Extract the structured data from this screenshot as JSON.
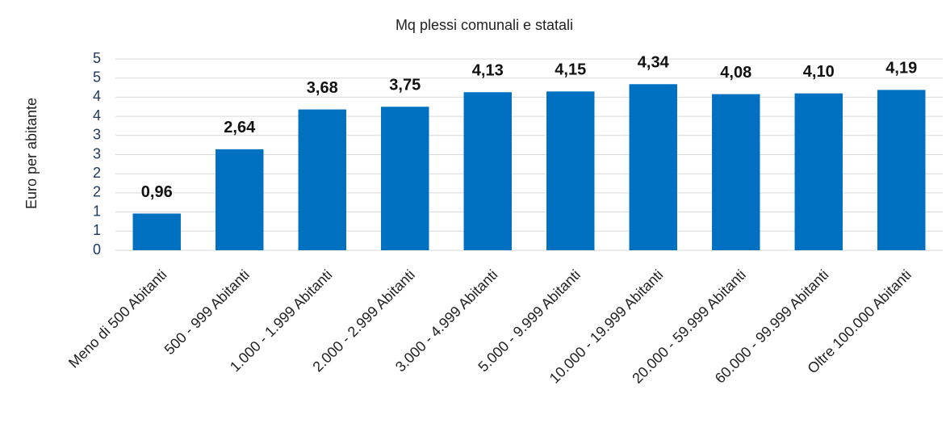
{
  "chart_data": {
    "type": "bar",
    "title": "Mq plessi comunali e statali",
    "y_label": "Euro per abitante",
    "categories": [
      "Meno di 500 Abitanti",
      "500 - 999 Abitanti",
      "1.000 - 1.999 Abitanti",
      "2.000 - 2.999 Abitanti",
      "3.000 - 4.999 Abitanti",
      "5.000 - 9.999 Abitanti",
      "10.000 - 19.999 Abitanti",
      "20.000 - 59.999 Abitanti",
      "60.000 - 99.999 Abitanti",
      "Oltre 100.000 Abitanti"
    ],
    "values": [
      0.96,
      2.64,
      3.68,
      3.75,
      4.13,
      4.15,
      4.34,
      4.08,
      4.1,
      4.19
    ],
    "value_labels": [
      "0,96",
      "2,64",
      "3,68",
      "3,75",
      "4,13",
      "4,15",
      "4,34",
      "4,08",
      "4,10",
      "4,19"
    ],
    "color": "#0070c0",
    "ylim": [
      0,
      5
    ],
    "yticks": [
      0,
      {
        "value": 0.5,
        "label": "1"
      },
      1,
      {
        "value": 1.5,
        "label": "2"
      },
      2,
      {
        "value": 2.5,
        "label": "3"
      },
      3,
      {
        "value": 3.5,
        "label": "4"
      },
      4,
      {
        "value": 4.5,
        "label": "5"
      },
      5
    ],
    "grid": true
  }
}
